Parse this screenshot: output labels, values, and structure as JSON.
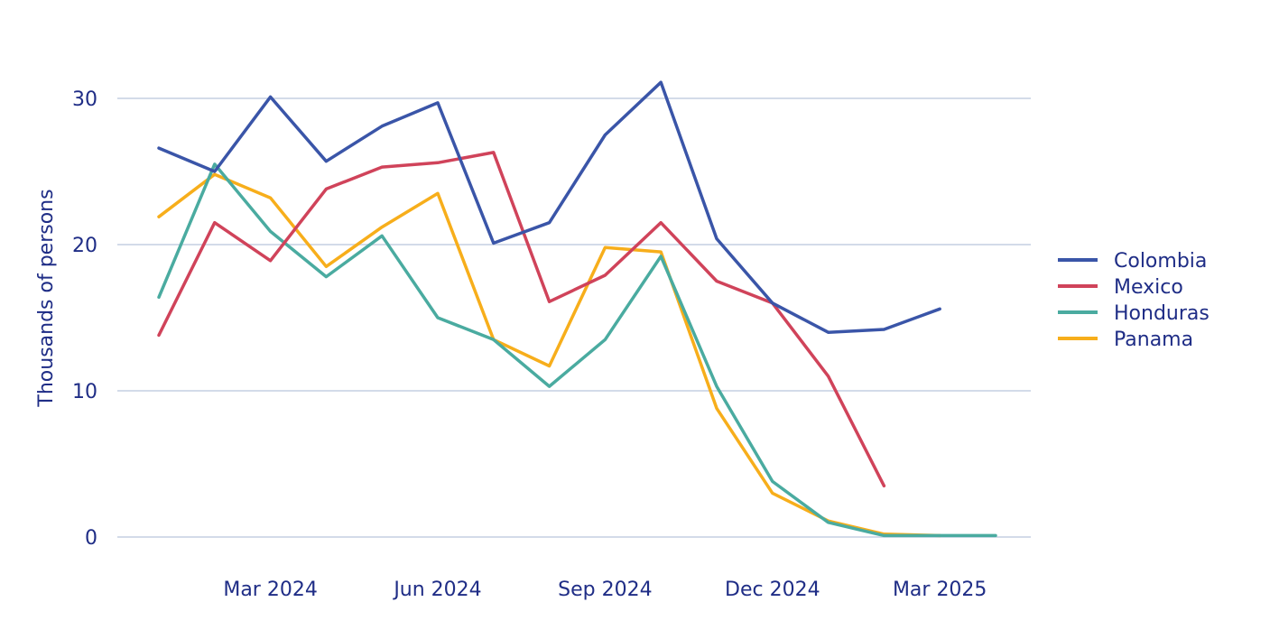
{
  "chart_data": {
    "type": "line",
    "title": "",
    "xlabel": "",
    "ylabel": "Thousands of persons",
    "ylim": [
      0,
      30
    ],
    "yticks": [
      0,
      10,
      20,
      30
    ],
    "x": [
      "2024-01",
      "2024-02",
      "2024-03",
      "2024-04",
      "2024-05",
      "2024-06",
      "2024-07",
      "2024-08",
      "2024-09",
      "2024-10",
      "2024-11",
      "2024-12",
      "2025-01",
      "2025-02",
      "2025-03",
      "2025-04"
    ],
    "xticks": [
      {
        "value": "2024-03",
        "label": "Mar 2024"
      },
      {
        "value": "2024-06",
        "label": "Jun 2024"
      },
      {
        "value": "2024-09",
        "label": "Sep 2024"
      },
      {
        "value": "2024-12",
        "label": "Dec 2024"
      },
      {
        "value": "2025-03",
        "label": "Mar 2025"
      }
    ],
    "grid": true,
    "legend_position": "right",
    "series": [
      {
        "name": "Colombia",
        "color": "#3a55a8",
        "values": [
          26.6,
          25.0,
          30.1,
          25.7,
          28.1,
          29.7,
          20.1,
          21.5,
          27.5,
          31.1,
          20.4,
          16.0,
          14.0,
          14.2,
          15.6,
          null
        ]
      },
      {
        "name": "Mexico",
        "color": "#d0435a",
        "values": [
          13.8,
          21.5,
          18.9,
          23.8,
          25.3,
          25.6,
          26.3,
          16.1,
          17.9,
          21.5,
          17.5,
          16.0,
          11.0,
          3.5,
          null,
          null
        ]
      },
      {
        "name": "Honduras",
        "color": "#4aaba0",
        "values": [
          16.4,
          25.5,
          20.9,
          17.8,
          20.6,
          15.0,
          13.5,
          10.3,
          13.5,
          19.2,
          10.3,
          3.8,
          1.0,
          0.1,
          0.1,
          0.1
        ]
      },
      {
        "name": "Panama",
        "color": "#f7ae1b",
        "values": [
          21.9,
          24.8,
          23.2,
          18.5,
          21.2,
          23.5,
          13.5,
          11.7,
          19.8,
          19.5,
          8.8,
          3.0,
          1.1,
          0.2,
          0.1,
          null
        ]
      }
    ]
  }
}
